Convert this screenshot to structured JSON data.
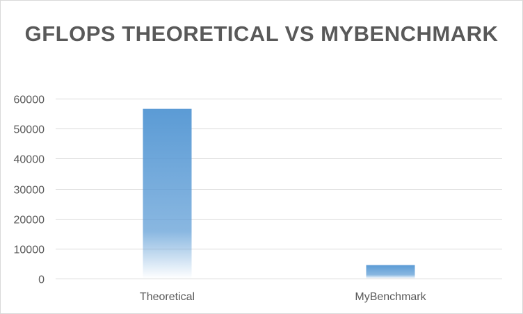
{
  "chart_data": {
    "type": "bar",
    "title": "GFLOPS THEORETICAL VS MYBENCHMARK",
    "categories": [
      "Theoretical",
      "MyBenchmark"
    ],
    "values": [
      56600,
      4500
    ],
    "ylim": [
      0,
      60000
    ],
    "yticks": [
      "0",
      "10000",
      "20000",
      "30000",
      "40000",
      "50000",
      "60000"
    ],
    "grid": true,
    "legend": "none",
    "colors": {
      "bar": "#5b9bd5",
      "grid": "#d9d9d9",
      "text": "#595959"
    }
  }
}
